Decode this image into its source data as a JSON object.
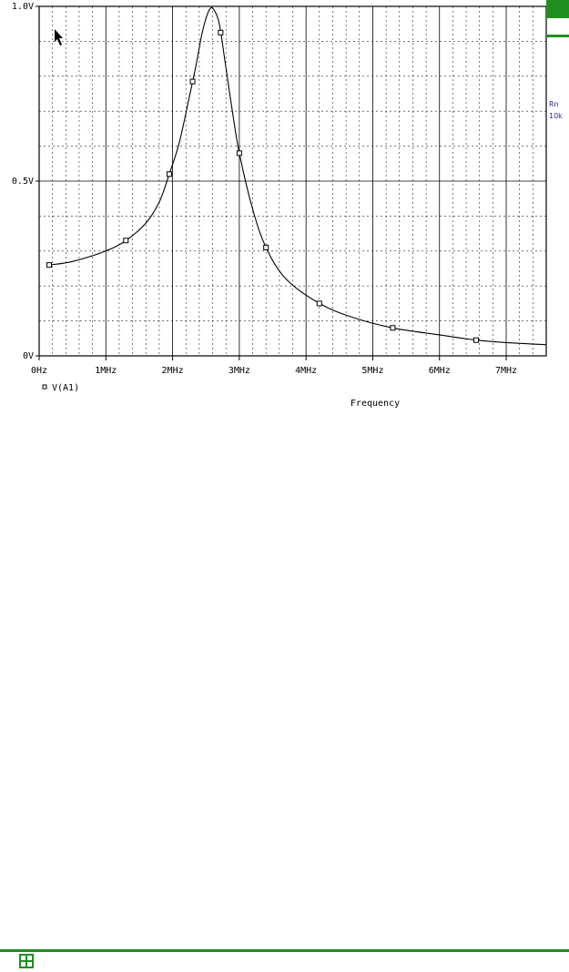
{
  "chart_data": {
    "type": "line",
    "title": "",
    "xlabel": "Frequency",
    "ylabel": "",
    "xlim": [
      0,
      7.6
    ],
    "ylim": [
      0,
      1.0
    ],
    "x_ticks": [
      {
        "value": 0,
        "label": "0Hz"
      },
      {
        "value": 1,
        "label": "1MHz"
      },
      {
        "value": 2,
        "label": "2MHz"
      },
      {
        "value": 3,
        "label": "3MHz"
      },
      {
        "value": 4,
        "label": "4MHz"
      },
      {
        "value": 5,
        "label": "5MHz"
      },
      {
        "value": 6,
        "label": "6MHz"
      },
      {
        "value": 7,
        "label": "7MHz"
      }
    ],
    "y_ticks": [
      {
        "value": 0,
        "label": "0V"
      },
      {
        "value": 0.5,
        "label": "0.5V"
      },
      {
        "value": 1.0,
        "label": "1.0V"
      }
    ],
    "grid": true,
    "legend_position": "bottom-left",
    "series": [
      {
        "name": "V(A1)",
        "marker": "square",
        "x": [
          0.15,
          0.5,
          1.0,
          1.3,
          1.6,
          1.8,
          1.95,
          2.1,
          2.25,
          2.35,
          2.45,
          2.55,
          2.62,
          2.7,
          2.78,
          2.88,
          3.0,
          3.2,
          3.4,
          3.7,
          4.2,
          4.7,
          5.3,
          6.0,
          6.55,
          7.0,
          7.6
        ],
        "y": [
          0.26,
          0.27,
          0.3,
          0.33,
          0.38,
          0.44,
          0.52,
          0.61,
          0.74,
          0.83,
          0.93,
          0.99,
          0.99,
          0.95,
          0.85,
          0.72,
          0.58,
          0.42,
          0.31,
          0.22,
          0.15,
          0.11,
          0.08,
          0.06,
          0.045,
          0.038,
          0.032
        ],
        "marker_x": [
          0.15,
          1.3,
          1.95,
          2.3,
          2.72,
          3.0,
          3.4,
          4.2,
          5.3,
          6.55
        ]
      }
    ]
  },
  "side": {
    "label1": "Rn",
    "label2": "10k"
  },
  "colors": {
    "accent": "#1f8f1f",
    "side_text": "#2a2a9a"
  },
  "footer": {
    "icon": "app-logo-icon"
  }
}
